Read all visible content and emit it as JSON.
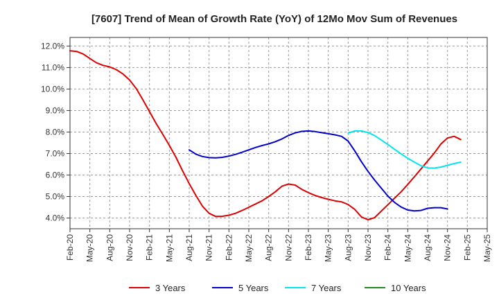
{
  "chart_data": {
    "type": "line",
    "title": "[7607]  Trend of Mean of Growth Rate (YoY) of 12Mo Mov Sum of Revenues",
    "xlabel": "",
    "ylabel": "",
    "ylim": [
      3.5,
      12.4
    ],
    "y_ticks": [
      4.0,
      5.0,
      6.0,
      7.0,
      8.0,
      9.0,
      10.0,
      11.0,
      12.0
    ],
    "y_tick_labels": [
      "4.0%",
      "5.0%",
      "6.0%",
      "7.0%",
      "8.0%",
      "9.0%",
      "10.0%",
      "11.0%",
      "12.0%"
    ],
    "x_start": "Feb-20",
    "x_tick_labels": [
      "Feb-20",
      "May-20",
      "Aug-20",
      "Nov-20",
      "Feb-21",
      "May-21",
      "Aug-21",
      "Nov-21",
      "Feb-22",
      "May-22",
      "Aug-22",
      "Nov-22",
      "Feb-23",
      "May-23",
      "Aug-23",
      "Nov-23",
      "Feb-24",
      "May-24",
      "Aug-24",
      "Nov-24",
      "Feb-25",
      "May-25"
    ],
    "x_range_months": [
      0,
      63
    ],
    "grid": true,
    "legend_position": "bottom",
    "series": [
      {
        "name": "3 Years",
        "color": "#dd0000",
        "start_month": 0,
        "values": [
          11.78,
          11.75,
          11.63,
          11.42,
          11.22,
          11.1,
          11.03,
          10.9,
          10.7,
          10.42,
          10.02,
          9.5,
          8.95,
          8.4,
          7.9,
          7.38,
          6.82,
          6.2,
          5.6,
          5.05,
          4.55,
          4.22,
          4.07,
          4.08,
          4.13,
          4.22,
          4.35,
          4.5,
          4.65,
          4.8,
          5.0,
          5.22,
          5.48,
          5.58,
          5.53,
          5.33,
          5.18,
          5.05,
          4.95,
          4.87,
          4.8,
          4.75,
          4.63,
          4.4,
          4.05,
          3.92,
          4.02,
          4.32,
          4.62,
          4.92,
          5.22,
          5.56,
          5.92,
          6.28,
          6.65,
          7.02,
          7.44,
          7.72,
          7.8,
          7.65
        ]
      },
      {
        "name": "5 Years",
        "color": "#0000cc",
        "start_month": 18,
        "values": [
          7.17,
          6.97,
          6.86,
          6.81,
          6.8,
          6.82,
          6.88,
          6.96,
          7.06,
          7.17,
          7.28,
          7.37,
          7.45,
          7.55,
          7.68,
          7.84,
          7.96,
          8.03,
          8.05,
          8.02,
          7.97,
          7.92,
          7.87,
          7.8,
          7.58,
          7.12,
          6.62,
          6.17,
          5.76,
          5.39,
          5.02,
          4.73,
          4.51,
          4.37,
          4.33,
          4.35,
          4.45,
          4.48,
          4.48,
          4.42
        ]
      },
      {
        "name": "7 Years",
        "color": "#00e5ee",
        "start_month": 42,
        "values": [
          7.95,
          8.05,
          8.05,
          7.98,
          7.83,
          7.63,
          7.42,
          7.2,
          6.98,
          6.78,
          6.6,
          6.43,
          6.33,
          6.32,
          6.37,
          6.45,
          6.53,
          6.6
        ]
      },
      {
        "name": "10 Years",
        "color": "#228822",
        "start_month": 0,
        "values": []
      }
    ]
  }
}
